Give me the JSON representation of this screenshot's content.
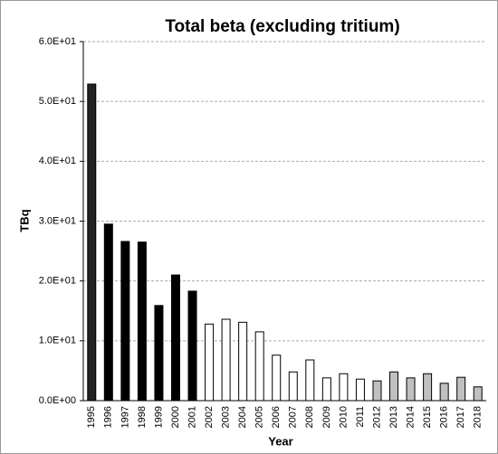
{
  "chart_data": {
    "type": "bar",
    "title": "Total beta (excluding tritium)",
    "x_label": "Year",
    "y_label": "TBq",
    "categories": [
      "1995",
      "1996",
      "1997",
      "1998",
      "1999",
      "2000",
      "2001",
      "2002",
      "2003",
      "2004",
      "2005",
      "2006",
      "2007",
      "2008",
      "2009",
      "2010",
      "2011",
      "2012",
      "2013",
      "2014",
      "2015",
      "2016",
      "2017",
      "2018"
    ],
    "values": [
      52.9,
      29.5,
      26.6,
      26.5,
      15.9,
      21.0,
      18.3,
      12.8,
      13.6,
      13.1,
      11.5,
      7.6,
      4.8,
      6.8,
      3.8,
      4.5,
      3.6,
      3.3,
      4.8,
      3.8,
      4.5,
      2.9,
      3.9,
      2.3
    ],
    "colors": [
      "#222222",
      "#000000",
      "#000000",
      "#000000",
      "#000000",
      "#000000",
      "#000000",
      "#ffffff",
      "#ffffff",
      "#ffffff",
      "#ffffff",
      "#ffffff",
      "#ffffff",
      "#ffffff",
      "#ffffff",
      "#ffffff",
      "#ffffff",
      "#c0c0c0",
      "#c0c0c0",
      "#c0c0c0",
      "#c0c0c0",
      "#c0c0c0",
      "#c0c0c0",
      "#c0c0c0"
    ],
    "ylim": [
      0,
      60
    ],
    "yticks": [
      {
        "value": 0,
        "label": "0.0E+00"
      },
      {
        "value": 10,
        "label": "1.0E+01"
      },
      {
        "value": 20,
        "label": "2.0E+01"
      },
      {
        "value": 30,
        "label": "3.0E+01"
      },
      {
        "value": 40,
        "label": "4.0E+01"
      },
      {
        "value": 50,
        "label": "5.0E+01"
      },
      {
        "value": 60,
        "label": "6.0E+01"
      }
    ],
    "grid": true
  }
}
